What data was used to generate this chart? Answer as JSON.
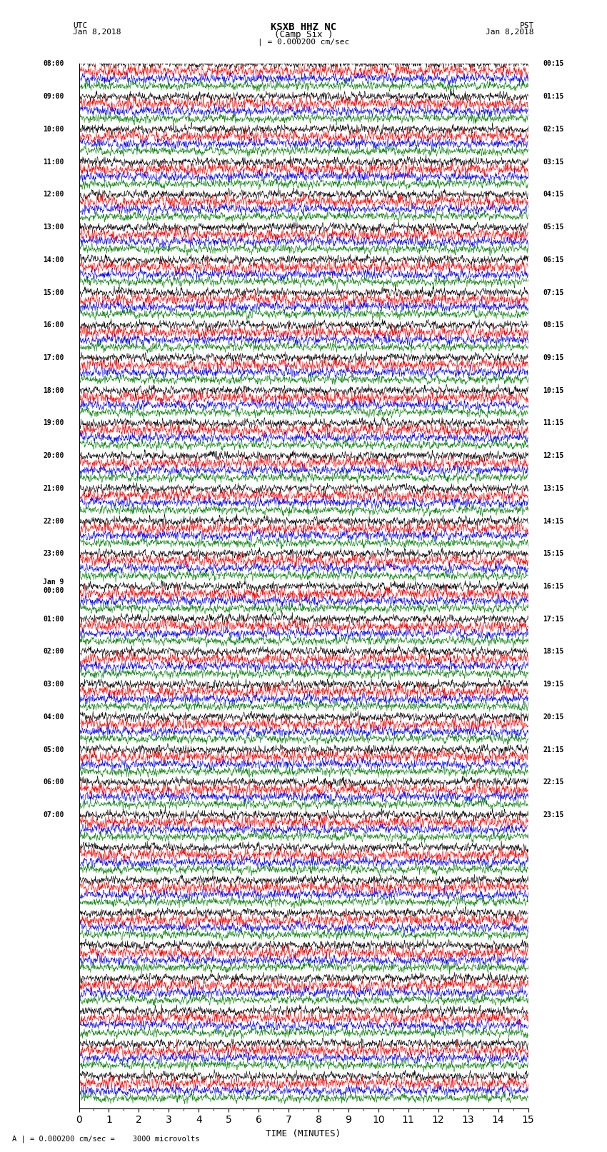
{
  "title_line1": "KSXB HHZ NC",
  "title_line2": "(Camp Six )",
  "scale_label": "| = 0.000200 cm/sec",
  "bottom_label": "A | = 0.000200 cm/sec =    3000 microvolts",
  "xlabel": "TIME (MINUTES)",
  "bg_color": "#ffffff",
  "trace_colors": [
    "#000000",
    "#ff0000",
    "#0000ff",
    "#008000"
  ],
  "n_rows": 32,
  "minutes_per_row": 15,
  "xlim": [
    0,
    15
  ],
  "xticks": [
    0,
    1,
    2,
    3,
    4,
    5,
    6,
    7,
    8,
    9,
    10,
    11,
    12,
    13,
    14,
    15
  ],
  "utc_labels": [
    "08:00",
    "09:00",
    "10:00",
    "11:00",
    "12:00",
    "13:00",
    "14:00",
    "15:00",
    "16:00",
    "17:00",
    "18:00",
    "19:00",
    "20:00",
    "21:00",
    "22:00",
    "23:00",
    "Jan 9\n00:00",
    "01:00",
    "02:00",
    "03:00",
    "04:00",
    "05:00",
    "06:00",
    "07:00",
    "",
    "",
    "",
    "",
    "",
    "",
    "",
    "",
    "",
    ""
  ],
  "pst_labels": [
    "00:15",
    "01:15",
    "02:15",
    "03:15",
    "04:15",
    "05:15",
    "06:15",
    "07:15",
    "08:15",
    "09:15",
    "10:15",
    "11:15",
    "12:15",
    "13:15",
    "14:15",
    "15:15",
    "16:15",
    "17:15",
    "18:15",
    "19:15",
    "20:15",
    "21:15",
    "22:15",
    "23:15",
    "",
    "",
    "",
    "",
    "",
    "",
    "",
    "",
    "",
    ""
  ],
  "noise_seed": 42
}
